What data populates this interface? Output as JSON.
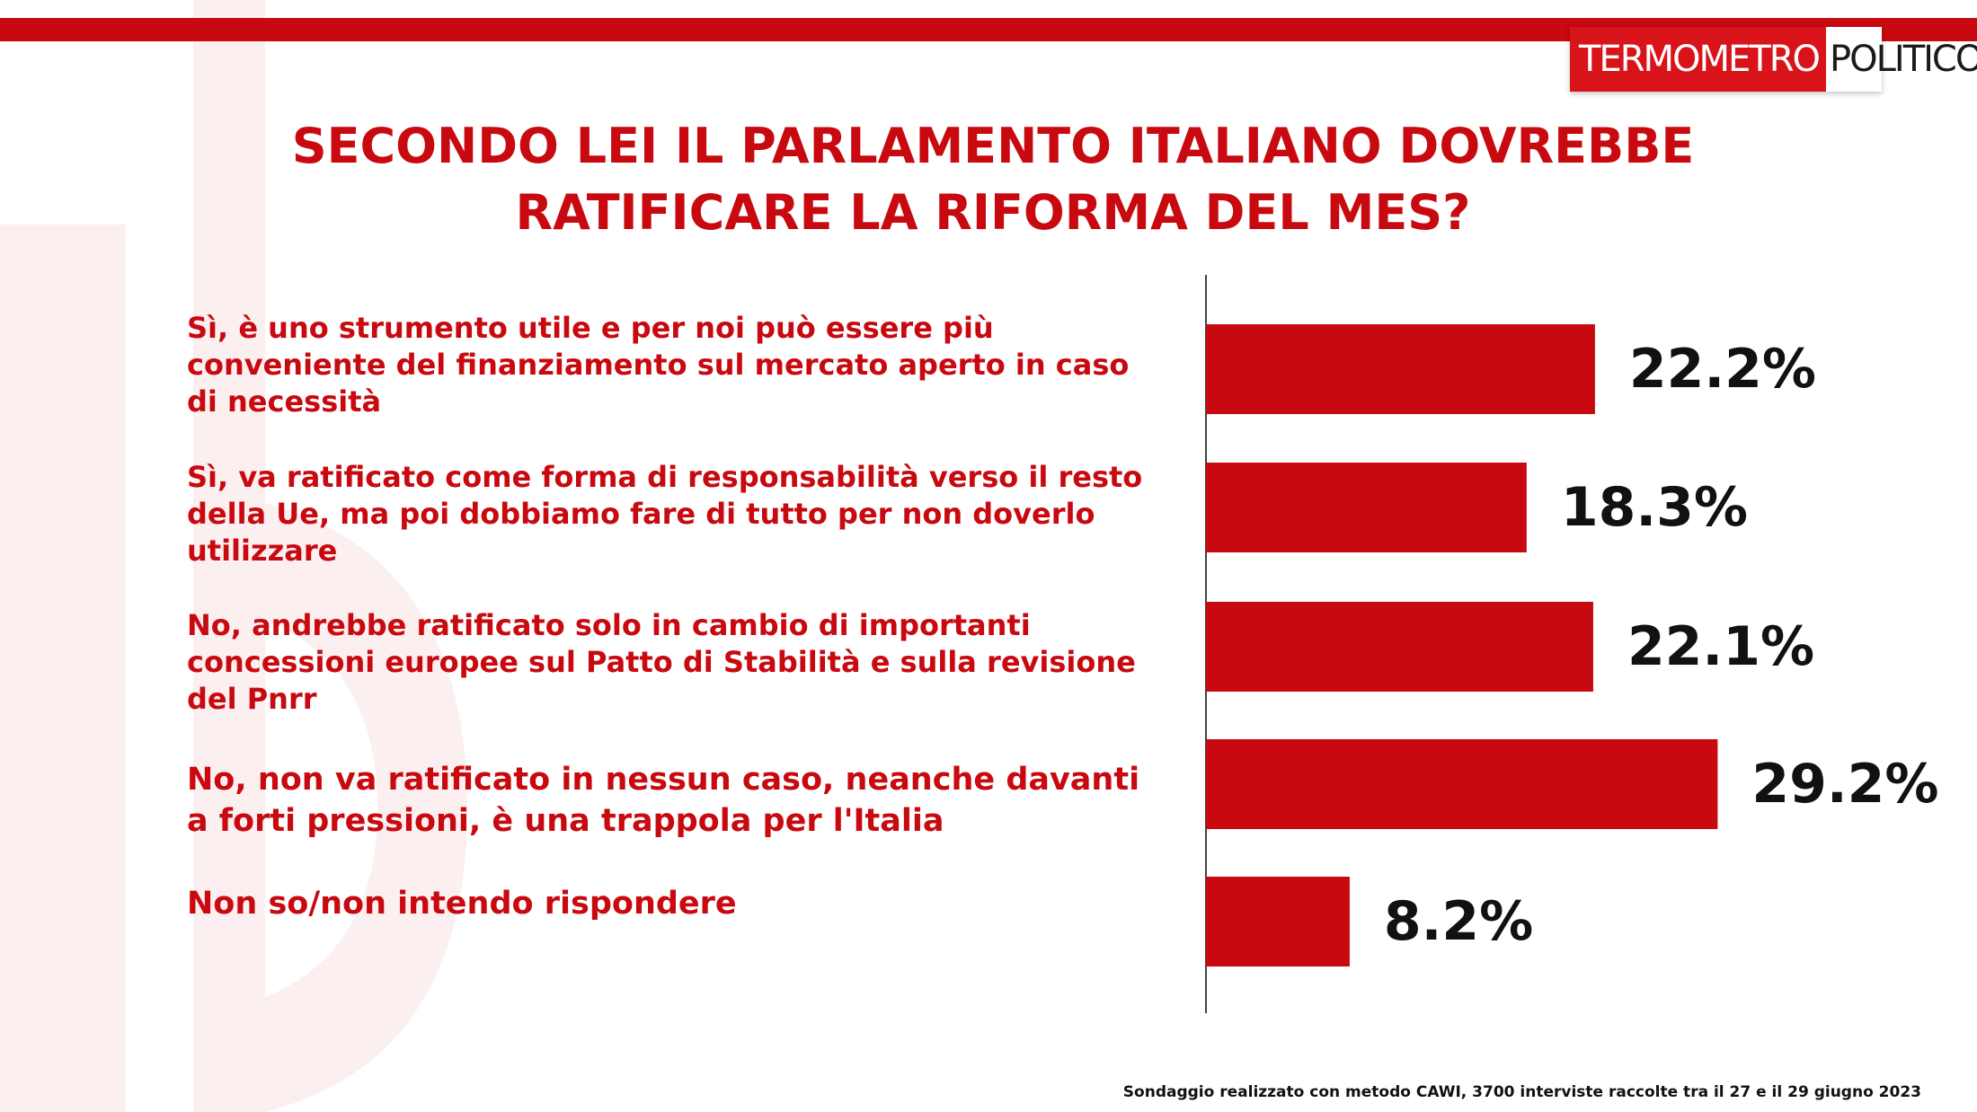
{
  "logo": {
    "part1": "TERMOMETRO",
    "part2": "POLITICO"
  },
  "title_lines": [
    "SECONDO LEI IL PARLAMENTO ITALIANO DOVREBBE",
    "RATIFICARE LA RIFORMA DEL MES?"
  ],
  "colors": {
    "accent": "#c8090f",
    "bar": "#c8090f",
    "value_text": "#111111"
  },
  "chart_data": {
    "type": "bar",
    "orientation": "horizontal",
    "categories": [
      "Sì, è uno strumento utile e per noi può essere più conveniente del finanziamento sul mercato aperto in caso di necessità",
      "Sì, va ratificato come forma di responsabilità  verso il resto della Ue, ma poi dobbiamo fare di tutto per non doverlo utilizzare",
      "No, andrebbe ratificato solo in cambio di importanti concessioni europee sul Patto di Stabilità  e sulla revisione del Pnrr",
      "No, non va ratificato in nessun caso, neanche davanti a forti pressioni, è una trappola per l'Italia",
      "Non so/non intendo rispondere"
    ],
    "category_lines": [
      [
        "Sì, è uno strumento utile e per noi può essere più",
        "conveniente del finanziamento sul mercato aperto in caso",
        "di necessità"
      ],
      [
        "Sì, va ratificato come forma di responsabilità  verso il resto",
        "della Ue, ma poi dobbiamo fare di tutto per non doverlo",
        "utilizzare"
      ],
      [
        "No, andrebbe ratificato solo in cambio di importanti",
        "concessioni europee sul Patto di Stabilità  e sulla revisione",
        "del Pnrr"
      ],
      [
        "No, non va ratificato in nessun caso, neanche davanti",
        "a forti pressioni, è una trappola per l'Italia"
      ],
      [
        "Non so/non intendo rispondere"
      ]
    ],
    "values": [
      22.2,
      18.3,
      22.1,
      29.2,
      8.2
    ],
    "value_labels": [
      "22.2%",
      "18.3%",
      "22.1%",
      "29.2%",
      "8.2%"
    ],
    "unit": "%",
    "xlim": [
      0,
      30
    ],
    "grid": false,
    "legend": "none"
  },
  "footnote": "Sondaggio realizzato con metodo CAWI, 3700 interviste raccolte tra il 27 e il 29 giugno 2023"
}
